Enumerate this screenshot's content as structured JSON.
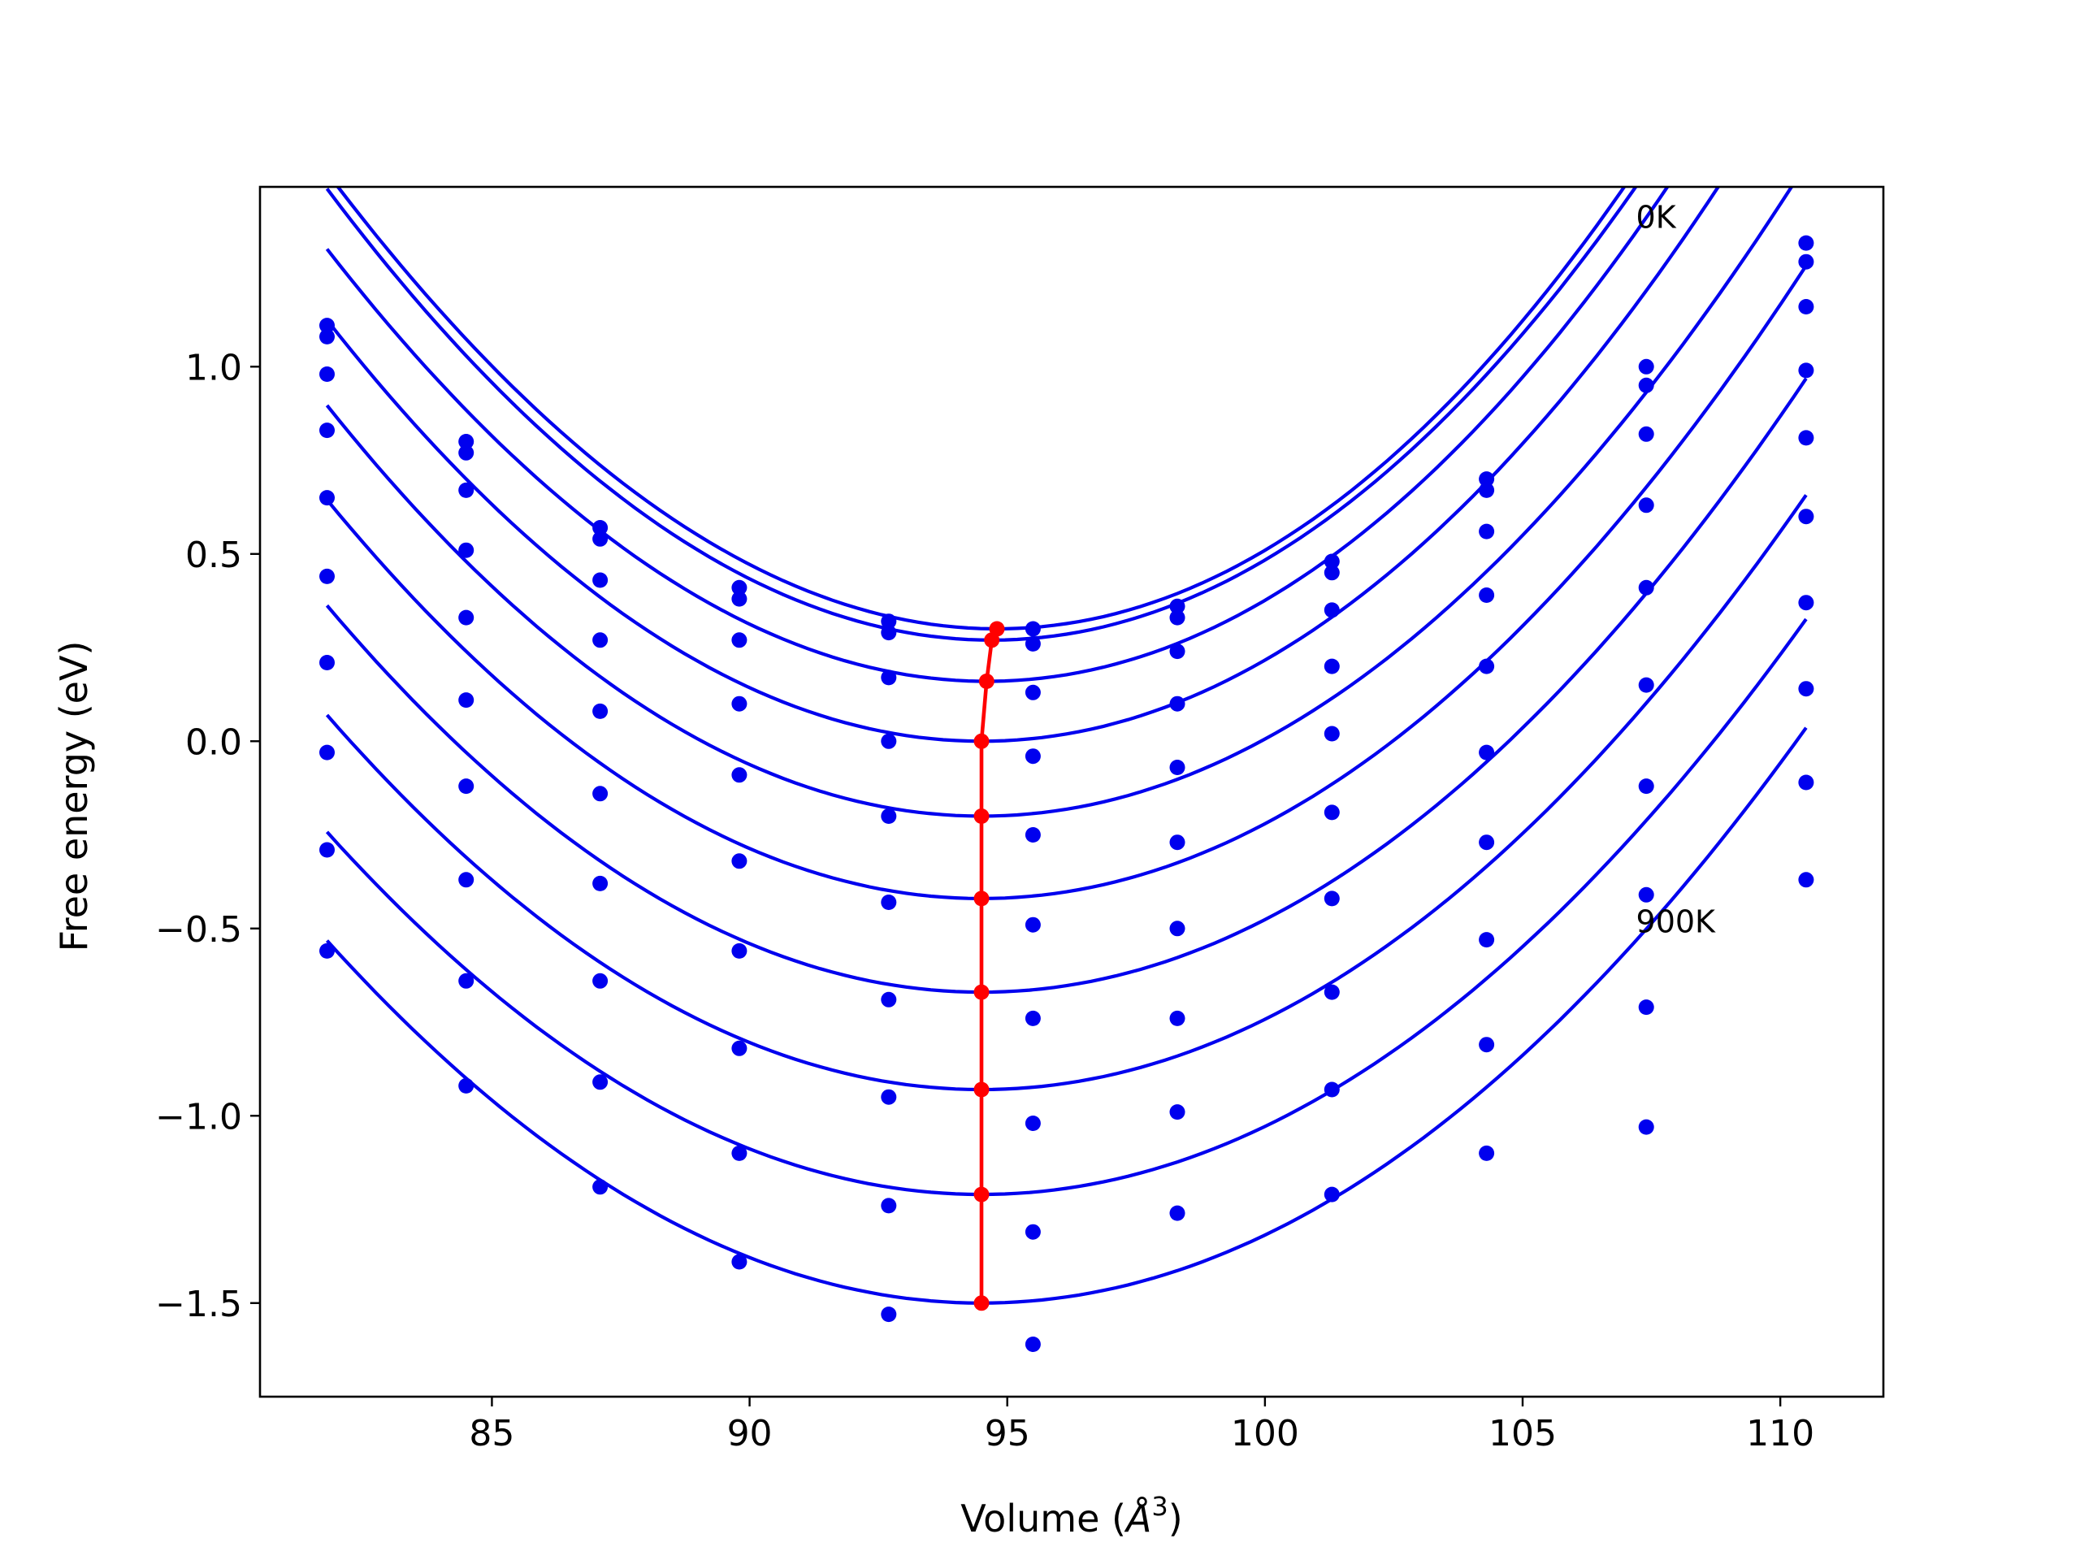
{
  "chart_data": {
    "type": "line",
    "xlabel_prefix": "Volume (",
    "xlabel_unit": "Å",
    "xlabel_exp": "3",
    "xlabel_suffix": ")",
    "ylabel": "Free energy (eV)",
    "xlim": [
      80.5,
      112
    ],
    "ylim": [
      -1.75,
      1.48
    ],
    "x_ticks": [
      85,
      90,
      95,
      100,
      105,
      110
    ],
    "x_tick_labels": [
      "85",
      "90",
      "95",
      "100",
      "105",
      "110"
    ],
    "y_ticks": [
      -1.5,
      -1.0,
      -0.5,
      0.0,
      0.5,
      1.0
    ],
    "y_tick_labels": [
      "−1.5",
      "−1.0",
      "−0.5",
      "0.0",
      "0.5",
      "1.0"
    ],
    "grid": false,
    "legend": "none",
    "colors": {
      "curves": "#0000ee",
      "minimum": "#ff0000"
    },
    "annotations": [
      {
        "text": "0K",
        "x": 107.2,
        "y": 1.37
      },
      {
        "text": "900K",
        "x": 107.2,
        "y": -0.51
      }
    ],
    "volumes": [
      81.8,
      84.5,
      87.1,
      89.8,
      92.7,
      95.5,
      98.3,
      101.3,
      104.3,
      107.4,
      110.5
    ],
    "series": [
      {
        "points": [
          1.11,
          0.8,
          0.57,
          0.41,
          0.32,
          0.3,
          0.36,
          0.48,
          0.7,
          1.0,
          1.33
        ],
        "fit": {
          "min_x": 94.8,
          "min_y": 0.3,
          "a": 0.0076,
          "b": 3e-05
        }
      },
      {
        "points": [
          1.08,
          0.77,
          0.54,
          0.38,
          0.29,
          0.26,
          0.33,
          0.45,
          0.67,
          0.95,
          1.28
        ],
        "fit": {
          "min_x": 94.7,
          "min_y": 0.27,
          "a": 0.0075,
          "b": 2e-05
        }
      },
      {
        "points": [
          0.98,
          0.67,
          0.43,
          0.27,
          0.17,
          0.13,
          0.24,
          0.35,
          0.56,
          0.82,
          1.16
        ],
        "fit": {
          "min_x": 94.6,
          "min_y": 0.16,
          "a": 0.0073,
          "b": 2e-05
        }
      },
      {
        "points": [
          0.83,
          0.51,
          0.27,
          0.1,
          0.0,
          -0.04,
          0.1,
          0.2,
          0.39,
          0.63,
          0.99
        ],
        "fit": {
          "min_x": 94.5,
          "min_y": 0.0,
          "a": 0.0071,
          "b": 1e-05
        }
      },
      {
        "points": [
          0.65,
          0.33,
          0.08,
          -0.09,
          -0.2,
          -0.25,
          -0.07,
          0.02,
          0.2,
          0.41,
          0.81
        ],
        "fit": {
          "min_x": 94.5,
          "min_y": -0.2,
          "a": 0.0068,
          "b": 0.0
        }
      },
      {
        "points": [
          0.44,
          0.11,
          -0.14,
          -0.32,
          -0.43,
          -0.49,
          -0.27,
          -0.19,
          -0.03,
          0.15,
          0.6
        ],
        "fit": {
          "min_x": 94.5,
          "min_y": -0.42,
          "a": 0.0066,
          "b": 0.0
        }
      },
      {
        "points": [
          0.21,
          -0.12,
          -0.38,
          -0.56,
          -0.69,
          -0.74,
          -0.5,
          -0.42,
          -0.27,
          -0.12,
          0.37
        ],
        "fit": {
          "min_x": 94.5,
          "min_y": -0.67,
          "a": 0.0064,
          "b": 0.0
        }
      },
      {
        "points": [
          -0.03,
          -0.37,
          -0.64,
          -0.82,
          -0.95,
          -1.02,
          -0.74,
          -0.67,
          -0.53,
          -0.41,
          0.14
        ],
        "fit": {
          "min_x": 94.5,
          "min_y": -0.93,
          "a": 0.0062,
          "b": 0.0
        }
      },
      {
        "points": [
          -0.29,
          -0.64,
          -0.91,
          -1.1,
          -1.24,
          -1.31,
          -0.99,
          -0.93,
          -0.81,
          -0.71,
          -0.11
        ],
        "fit": {
          "min_x": 94.5,
          "min_y": -1.21,
          "a": 0.006,
          "b": 0.0
        }
      },
      {
        "points": [
          -0.56,
          -0.92,
          -1.19,
          -1.39,
          -1.53,
          -1.61,
          -1.26,
          -1.21,
          -1.1,
          -1.03,
          -0.37
        ],
        "fit": {
          "min_x": 94.5,
          "min_y": -1.5,
          "a": 0.006,
          "b": 0.0
        }
      }
    ]
  }
}
